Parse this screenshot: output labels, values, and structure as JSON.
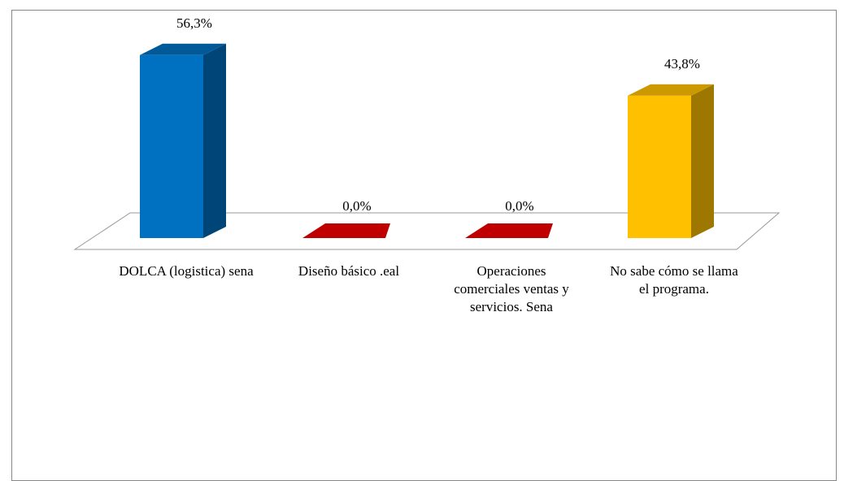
{
  "chart_data": {
    "type": "bar3d",
    "categories": [
      "DOLCA (logistica) sena",
      "Diseño básico .eal",
      "Operaciones comerciales ventas y servicios. Sena",
      "No sabe cómo se llama el programa."
    ],
    "values": [
      56.3,
      0,
      0,
      43.8
    ],
    "value_labels": [
      "56,3%",
      "0,0%",
      "0,0%",
      "43,8%"
    ],
    "colors": [
      "#0070c0",
      "#c00000",
      "#c00000",
      "#ffc000"
    ]
  }
}
